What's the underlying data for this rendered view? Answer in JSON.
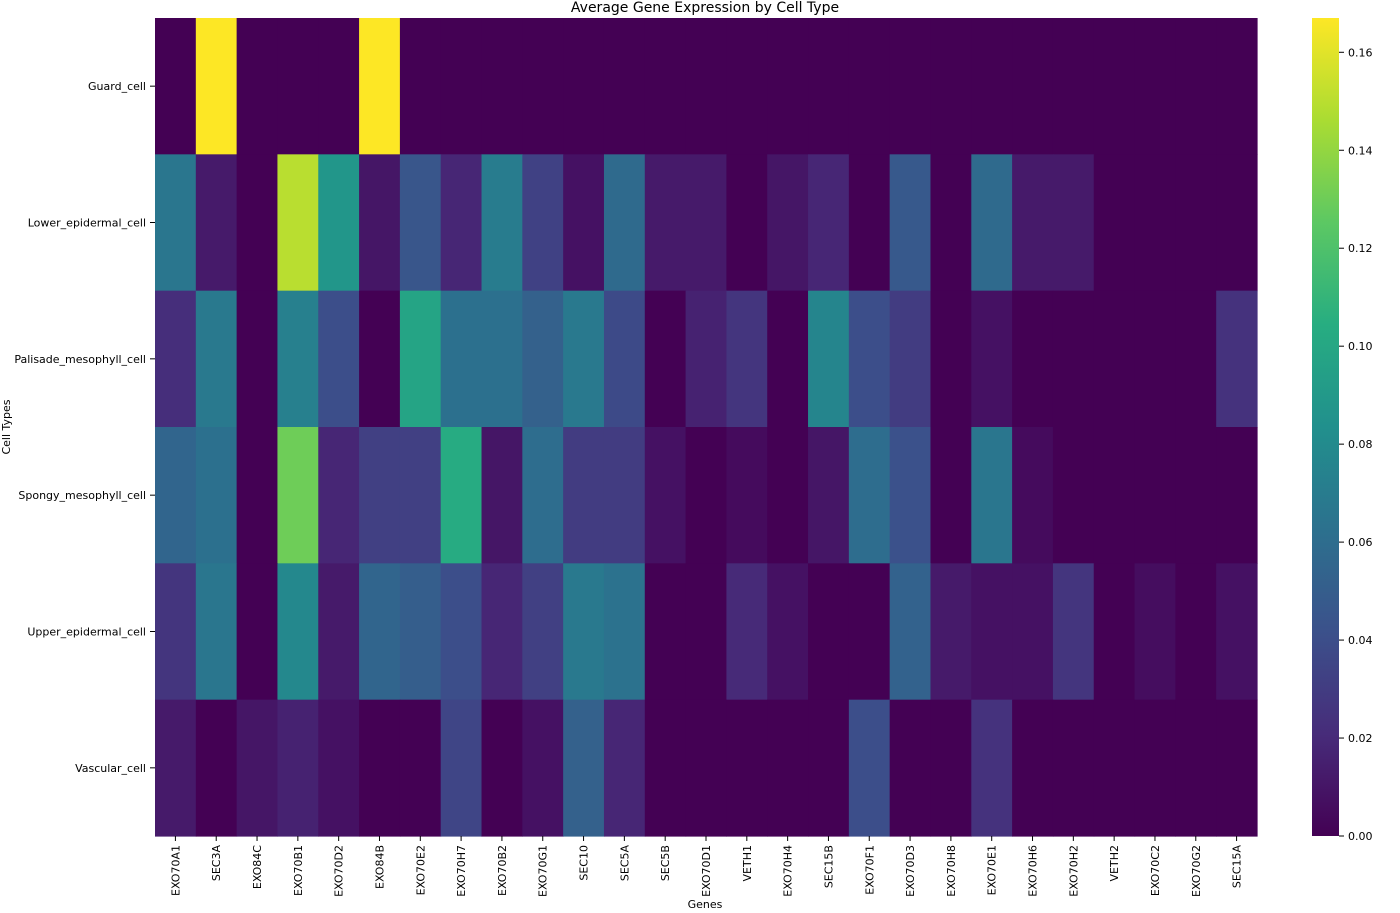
{
  "chart_data": {
    "type": "heatmap",
    "title": "Average Gene Expression by Cell Type",
    "xlabel": "Genes",
    "ylabel": "Cell Types",
    "colormap": "viridis",
    "vmin": 0.0,
    "vmax": 0.167,
    "colorbar_ticks": [
      "0.00",
      "0.02",
      "0.04",
      "0.06",
      "0.08",
      "0.10",
      "0.12",
      "0.14",
      "0.16"
    ],
    "colorbar_tick_values": [
      0.0,
      0.02,
      0.04,
      0.06,
      0.08,
      0.1,
      0.12,
      0.14,
      0.16
    ],
    "x_categories": [
      "EXO70A1",
      "SEC3A",
      "EXO84C",
      "EXO70B1",
      "EXO70D2",
      "EXO84B",
      "EXO70E2",
      "EXO70H7",
      "EXO70B2",
      "EXO70G1",
      "SEC10",
      "SEC5A",
      "SEC5B",
      "EXO70D1",
      "VETH1",
      "EXO70H4",
      "SEC15B",
      "EXO70F1",
      "EXO70D3",
      "EXO70H8",
      "EXO70E1",
      "EXO70H6",
      "EXO70H2",
      "VETH2",
      "EXO70C2",
      "EXO70G2",
      "SEC15A"
    ],
    "y_categories": [
      "Guard_cell",
      "Lower_epidermal_cell",
      "Palisade_mesophyll_cell",
      "Spongy_mesophyll_cell",
      "Upper_epidermal_cell",
      "Vascular_cell"
    ],
    "values": [
      [
        0.0,
        0.167,
        0.0,
        0.0,
        0.0,
        0.167,
        0.0,
        0.0,
        0.0,
        0.0,
        0.0,
        0.0,
        0.0,
        0.0,
        0.0,
        0.0,
        0.0,
        0.0,
        0.0,
        0.0,
        0.0,
        0.0,
        0.0,
        0.0,
        0.0,
        0.0,
        0.0
      ],
      [
        0.066,
        0.012,
        0.0,
        0.15,
        0.088,
        0.01,
        0.045,
        0.018,
        0.07,
        0.033,
        0.008,
        0.058,
        0.012,
        0.012,
        0.0,
        0.01,
        0.018,
        0.0,
        0.047,
        0.0,
        0.058,
        0.012,
        0.012,
        0.0,
        0.0,
        0.0,
        0.0
      ],
      [
        0.022,
        0.068,
        0.0,
        0.073,
        0.04,
        0.0,
        0.098,
        0.062,
        0.062,
        0.052,
        0.068,
        0.038,
        0.0,
        0.016,
        0.026,
        0.0,
        0.076,
        0.04,
        0.03,
        0.0,
        0.008,
        0.0,
        0.0,
        0.0,
        0.0,
        0.0,
        0.024
      ],
      [
        0.055,
        0.062,
        0.0,
        0.13,
        0.018,
        0.032,
        0.032,
        0.103,
        0.01,
        0.06,
        0.03,
        0.03,
        0.008,
        0.0,
        0.005,
        0.0,
        0.01,
        0.06,
        0.042,
        0.0,
        0.066,
        0.005,
        0.0,
        0.0,
        0.0,
        0.0,
        0.0
      ],
      [
        0.026,
        0.066,
        0.0,
        0.078,
        0.012,
        0.055,
        0.05,
        0.04,
        0.018,
        0.032,
        0.068,
        0.063,
        0.0,
        0.0,
        0.02,
        0.008,
        0.0,
        0.0,
        0.053,
        0.012,
        0.008,
        0.008,
        0.026,
        0.0,
        0.006,
        0.0,
        0.008
      ],
      [
        0.012,
        0.0,
        0.01,
        0.016,
        0.008,
        0.0,
        0.0,
        0.035,
        0.0,
        0.008,
        0.052,
        0.018,
        0.0,
        0.0,
        0.0,
        0.0,
        0.0,
        0.04,
        0.0,
        0.0,
        0.024,
        0.0,
        0.0,
        0.0,
        0.0,
        0.0,
        0.0
      ]
    ],
    "legend": "colorbar-right",
    "grid": false
  }
}
